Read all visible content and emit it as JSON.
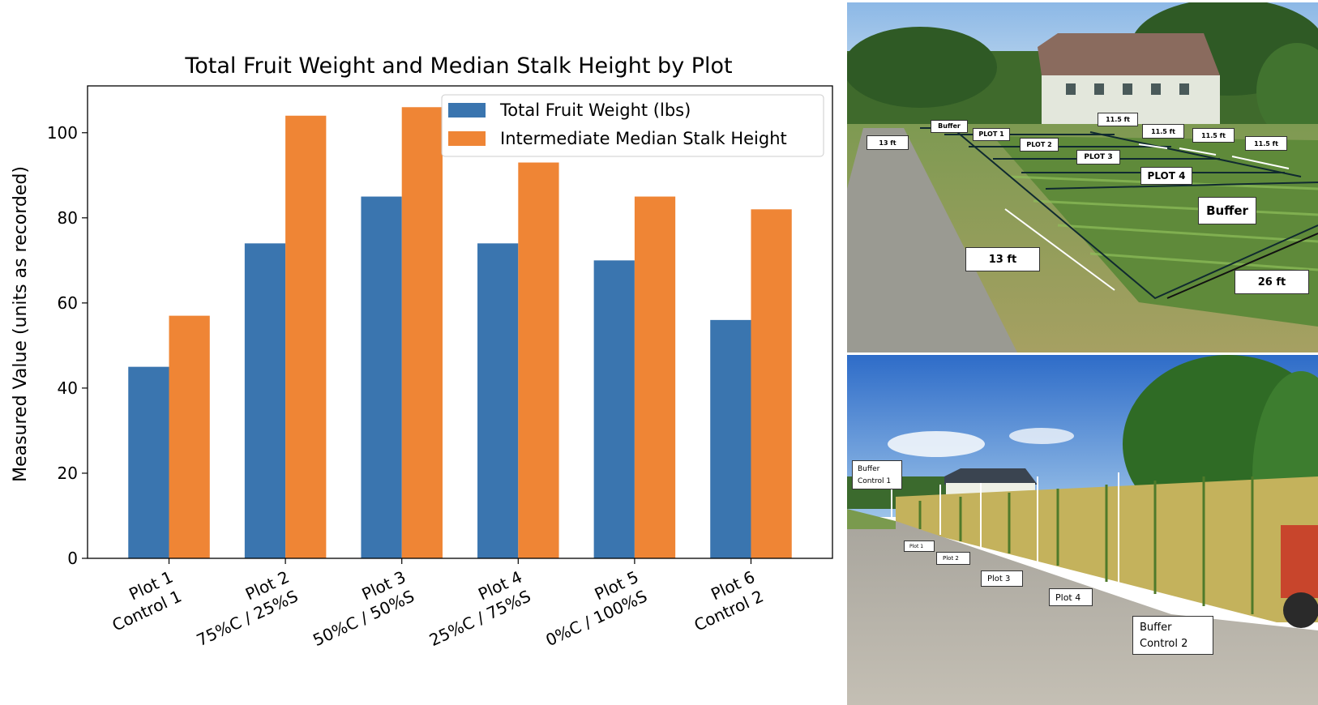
{
  "chart_data": {
    "type": "bar",
    "title": "Total Fruit Weight and Median Stalk Height by Plot",
    "xlabel": "",
    "ylabel": "Measured Value (units as recorded)",
    "ylim": [
      0,
      111
    ],
    "yticks": [
      0,
      20,
      40,
      60,
      80,
      100
    ],
    "categories": [
      [
        "Plot 1",
        "Control 1"
      ],
      [
        "Plot 2",
        "75%C / 25%S"
      ],
      [
        "Plot 3",
        "50%C / 50%S"
      ],
      [
        "Plot 4",
        "25%C / 75%S"
      ],
      [
        "Plot 5",
        "0%C / 100%S"
      ],
      [
        "Plot 6",
        "Control 2"
      ]
    ],
    "series": [
      {
        "name": "Total Fruit Weight (lbs)",
        "color": "#3a75af",
        "values": [
          45,
          74,
          85,
          74,
          70,
          56
        ]
      },
      {
        "name": "Intermediate Median Stalk Height",
        "color": "#ef8535",
        "values": [
          57,
          104,
          106,
          93,
          85,
          82
        ]
      }
    ],
    "legend_position": "top-right",
    "grid": false
  },
  "photos": {
    "top": {
      "labels": {
        "buffer_small": "Buffer",
        "plot1": "PLOT 1",
        "plot2": "PLOT 2",
        "plot3": "PLOT 3",
        "plot4": "PLOT 4",
        "buffer_big": "Buffer",
        "ft13_small": "13 ft",
        "ft115_a": "11.5 ft",
        "ft115_b": "11.5 ft",
        "ft115_c": "11.5 ft",
        "ft115_d": "11.5 ft",
        "ft13_big": "13 ft",
        "ft26": "26 ft"
      }
    },
    "bottom": {
      "labels": {
        "buffer_c1_line1": "Buffer",
        "buffer_c1_line2": "Control 1",
        "plot1": "Plot 1",
        "plot2": "Plot 2",
        "plot3": "Plot 3",
        "plot4": "Plot 4",
        "buffer_c2_line1": "Buffer",
        "buffer_c2_line2": "Control 2"
      }
    }
  }
}
